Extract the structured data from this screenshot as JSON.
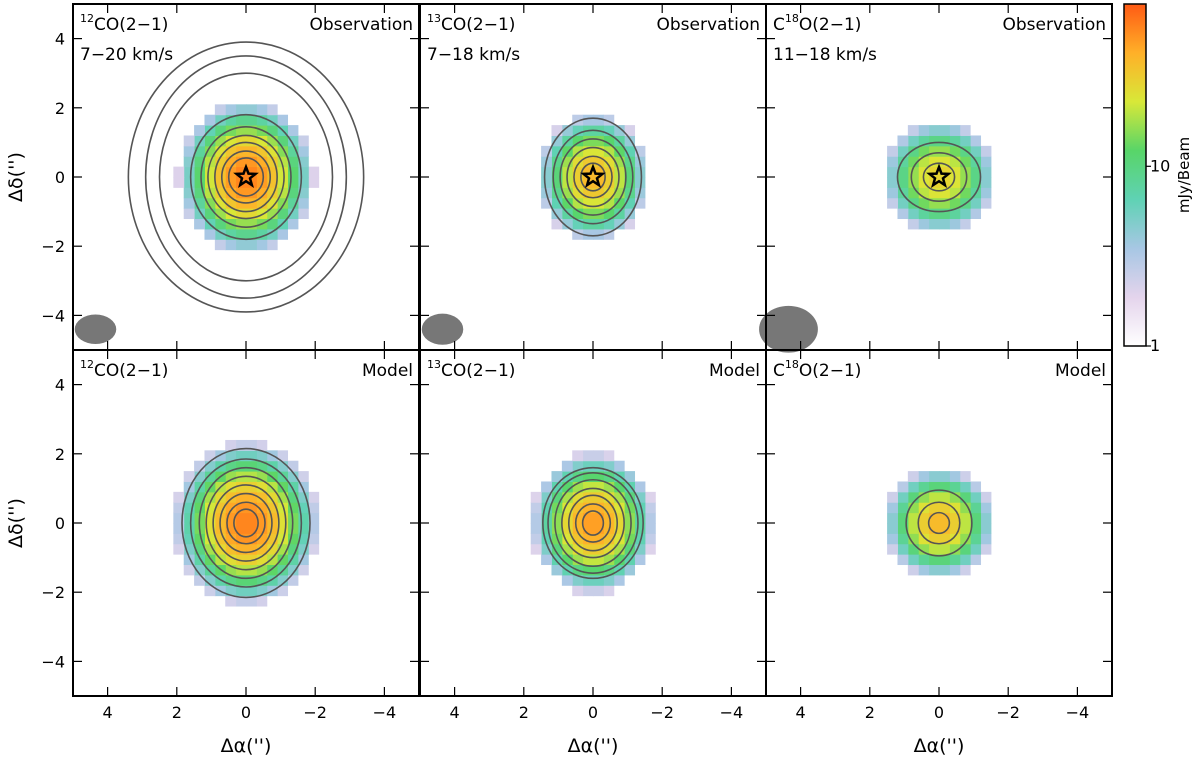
{
  "chart_data": {
    "type": "heatmap",
    "description_grid": "2 rows x 3 columns of channel-integrated intensity maps with contours",
    "x_axis": {
      "label": "Δα('')",
      "lim": [
        5,
        -5
      ],
      "ticks": [
        4,
        2,
        0,
        -2,
        -4
      ],
      "tick_labels": [
        "4",
        "2",
        "0",
        "−2",
        "−4"
      ]
    },
    "y_axis": {
      "label": "Δδ('')",
      "lim": [
        -5,
        5
      ],
      "ticks": [
        4,
        2,
        0,
        -2,
        -4
      ],
      "tick_labels": [
        "4",
        "2",
        "0",
        "−2",
        "−4"
      ]
    },
    "colorbar": {
      "label": "mJy/Beam",
      "scale": "log",
      "range": [
        1,
        80
      ],
      "ticks": [
        1,
        10
      ],
      "tick_labels": [
        "1",
        "10"
      ],
      "colormap": [
        "#ffffff",
        "#e4d4ec",
        "#a7c7e4",
        "#5fd2b4",
        "#58d568",
        "#d8e838",
        "#ffb028",
        "#ff5a14"
      ]
    },
    "panels": [
      {
        "id": "12co-obs",
        "row": 0,
        "col": 0,
        "molecule_sup": "12",
        "molecule_pre": "",
        "molecule_post": "CO(2−1)",
        "tag": "Observation",
        "velocity": "7−20 km/s",
        "peak_mJy": 60,
        "core_sigma": [
          0.75,
          0.85
        ],
        "contour_radii": [
          [
            0.5,
            0.55
          ],
          [
            0.7,
            0.75
          ],
          [
            0.9,
            1.0
          ],
          [
            1.1,
            1.2
          ],
          [
            1.3,
            1.45
          ],
          [
            1.6,
            1.8
          ],
          [
            2.5,
            3.0
          ],
          [
            2.9,
            3.5
          ],
          [
            3.4,
            3.9
          ]
        ],
        "beam_arcsec": [
          1.2,
          0.85
        ],
        "star": true
      },
      {
        "id": "13co-obs",
        "row": 0,
        "col": 1,
        "molecule_sup": "13",
        "molecule_pre": "",
        "molecule_post": "CO(2−1)",
        "tag": "Observation",
        "velocity": "7−18 km/s",
        "peak_mJy": 40,
        "core_sigma": [
          0.65,
          0.75
        ],
        "contour_radii": [
          [
            0.35,
            0.4
          ],
          [
            0.55,
            0.6
          ],
          [
            0.75,
            0.85
          ],
          [
            0.95,
            1.1
          ],
          [
            1.15,
            1.35
          ],
          [
            1.4,
            1.7
          ]
        ],
        "beam_arcsec": [
          1.2,
          0.9
        ],
        "star": true
      },
      {
        "id": "c18o-obs",
        "row": 0,
        "col": 2,
        "molecule_sup": "18",
        "molecule_pre": "C",
        "molecule_post": "O(2−1)",
        "tag": "Observation",
        "velocity": "11−18 km/s",
        "peak_mJy": 30,
        "core_sigma": [
          0.7,
          0.7
        ],
        "contour_radii": [
          [
            0.45,
            0.4
          ],
          [
            0.8,
            0.7
          ],
          [
            1.2,
            1.0
          ]
        ],
        "beam_arcsec": [
          1.7,
          1.35
        ],
        "star": true
      },
      {
        "id": "12co-model",
        "row": 1,
        "col": 0,
        "molecule_sup": "12",
        "molecule_pre": "",
        "molecule_post": "CO(2−1)",
        "tag": "Model",
        "velocity": "",
        "peak_mJy": 60,
        "core_sigma": [
          0.8,
          0.9
        ],
        "contour_radii": [
          [
            0.35,
            0.4
          ],
          [
            0.55,
            0.6
          ],
          [
            0.75,
            0.85
          ],
          [
            0.95,
            1.1
          ],
          [
            1.15,
            1.35
          ],
          [
            1.35,
            1.6
          ],
          [
            1.6,
            1.85
          ],
          [
            1.85,
            2.15
          ]
        ],
        "beam_arcsec": null,
        "star": false
      },
      {
        "id": "13co-model",
        "row": 1,
        "col": 1,
        "molecule_sup": "13",
        "molecule_pre": "",
        "molecule_post": "CO(2−1)",
        "tag": "Model",
        "velocity": "",
        "peak_mJy": 50,
        "core_sigma": [
          0.7,
          0.8
        ],
        "contour_radii": [
          [
            0.3,
            0.35
          ],
          [
            0.5,
            0.55
          ],
          [
            0.7,
            0.8
          ],
          [
            0.9,
            1.0
          ],
          [
            1.1,
            1.25
          ],
          [
            1.3,
            1.45
          ],
          [
            1.45,
            1.6
          ]
        ],
        "beam_arcsec": null,
        "star": false
      },
      {
        "id": "c18o-model",
        "row": 1,
        "col": 2,
        "molecule_sup": "18",
        "molecule_pre": "C",
        "molecule_post": "O(2−1)",
        "tag": "Model",
        "velocity": "",
        "peak_mJy": 40,
        "core_sigma": [
          0.65,
          0.65
        ],
        "contour_radii": [
          [
            0.3,
            0.3
          ],
          [
            0.6,
            0.6
          ],
          [
            0.95,
            0.95
          ]
        ],
        "beam_arcsec": null,
        "star": false
      }
    ]
  }
}
